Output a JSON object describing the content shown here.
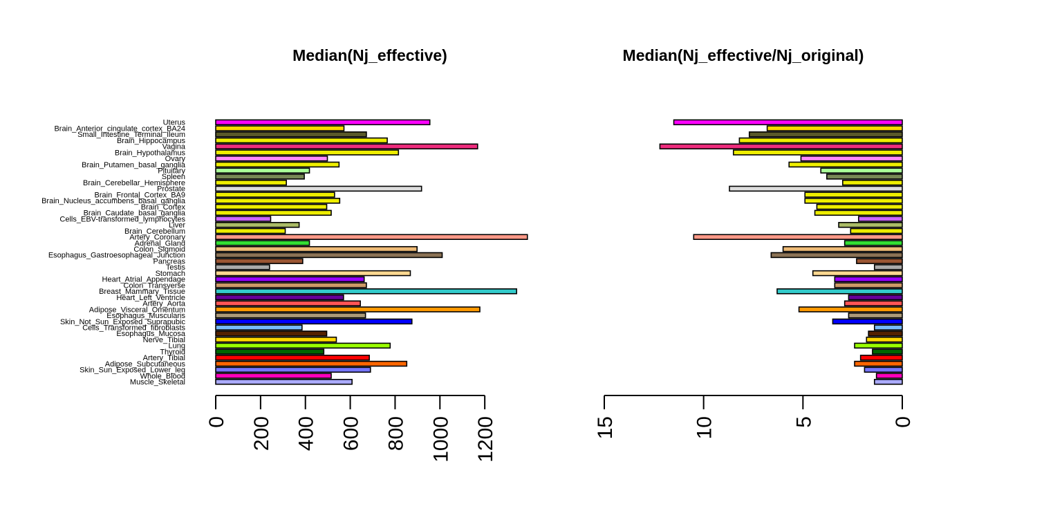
{
  "chart_data": [
    {
      "type": "bar",
      "orientation": "horizontal",
      "title": "Median(Nj_effective)",
      "xlabel": "",
      "ylabel": "",
      "xlim": [
        0,
        1400
      ],
      "xticks": [
        "0",
        "200",
        "400",
        "600",
        "800",
        "1000",
        "1200"
      ],
      "grid": false,
      "categories": [
        "Uterus",
        "Brain_Anterior_cingulate_cortex_BA24",
        "Small_Intestine_Terminal_Ileum",
        "Brain_Hippocampus",
        "Vagina",
        "Brain_Hypothalamus",
        "Ovary",
        "Brain_Putamen_basal_ganglia",
        "Pituitary",
        "Spleen",
        "Brain_Cerebellar_Hemisphere",
        "Prostate",
        "Brain_Frontal_Cortex_BA9",
        "Brain_Nucleus_accumbens_basal_ganglia",
        "Brain_Cortex",
        "Brain_Caudate_basal_ganglia",
        "Cells_EBV-transformed_lymphocytes",
        "Liver",
        "Brain_Cerebellum",
        "Artery_Coronary",
        "Adrenal_Gland",
        "Colon_Sigmoid",
        "Esophagus_Gastroesophageal_Junction",
        "Pancreas",
        "Testis",
        "Stomach",
        "Heart_Atrial_Appendage",
        "Colon_Transverse",
        "Breast_Mammary_Tissue",
        "Heart_Left_Ventricle",
        "Artery_Aorta",
        "Adipose_Visceral_Omentum",
        "Esophagus_Muscularis",
        "Skin_Not_Sun_Exposed_Suprapubic",
        "Cells_Transformed_fibroblasts",
        "Esophagus_Mucosa",
        "Nerve_Tibial",
        "Lung",
        "Thyroid",
        "Artery_Tibial",
        "Adipose_Subcutaneous",
        "Skin_Sun_Exposed_Lower_leg",
        "Whole_Blood",
        "Muscle_Skeletal"
      ],
      "colors": [
        "#FF00FF",
        "#FFD700",
        "#5A5A2A",
        "#EEEE00",
        "#EE2C7D",
        "#EEEE00",
        "#FF88FF",
        "#EEEE00",
        "#AAFF99",
        "#778855",
        "#EEEE00",
        "#DDDDDD",
        "#EEEE00",
        "#EEEE00",
        "#EEEE00",
        "#EEEE00",
        "#CC66FF",
        "#AABB66",
        "#EEEE00",
        "#FF9988",
        "#33DD33",
        "#EEBB77",
        "#8B7355",
        "#995533",
        "#AAAAAA",
        "#FFD991",
        "#9900FF",
        "#CC9966",
        "#33CCCC",
        "#660099",
        "#FF5555",
        "#FF9900",
        "#AA9977",
        "#0000FF",
        "#77BBFF",
        "#552200",
        "#FFD700",
        "#99FF00",
        "#006600",
        "#FF0000",
        "#FF6600",
        "#7777FF",
        "#FF00BB",
        "#AAAAFF"
      ],
      "values": [
        955,
        572,
        672,
        765,
        1168,
        815,
        498,
        550,
        418,
        395,
        315,
        918,
        530,
        553,
        495,
        515,
        245,
        372,
        310,
        1390,
        418,
        898,
        1010,
        388,
        240,
        868,
        662,
        672,
        1342,
        570,
        645,
        1178,
        668,
        875,
        385,
        495,
        538,
        778,
        482,
        685,
        852,
        690,
        515,
        608
      ]
    },
    {
      "type": "bar",
      "orientation": "horizontal",
      "title": "Median(Nj_effective/Nj_original)",
      "xlabel": "",
      "ylabel": "",
      "xlim": [
        15,
        0
      ],
      "xticks": [
        "15",
        "10",
        "5",
        "0"
      ],
      "grid": false,
      "categories": [
        "Uterus",
        "Brain_Anterior_cingulate_cortex_BA24",
        "Small_Intestine_Terminal_Ileum",
        "Brain_Hippocampus",
        "Vagina",
        "Brain_Hypothalamus",
        "Ovary",
        "Brain_Putamen_basal_ganglia",
        "Pituitary",
        "Spleen",
        "Brain_Cerebellar_Hemisphere",
        "Prostate",
        "Brain_Frontal_Cortex_BA9",
        "Brain_Nucleus_accumbens_basal_ganglia",
        "Brain_Cortex",
        "Brain_Caudate_basal_ganglia",
        "Cells_EBV-transformed_lymphocytes",
        "Liver",
        "Brain_Cerebellum",
        "Artery_Coronary",
        "Adrenal_Gland",
        "Colon_Sigmoid",
        "Esophagus_Gastroesophageal_Junction",
        "Pancreas",
        "Testis",
        "Stomach",
        "Heart_Atrial_Appendage",
        "Colon_Transverse",
        "Breast_Mammary_Tissue",
        "Heart_Left_Ventricle",
        "Artery_Aorta",
        "Adipose_Visceral_Omentum",
        "Esophagus_Muscularis",
        "Skin_Not_Sun_Exposed_Suprapubic",
        "Cells_Transformed_fibroblasts",
        "Esophagus_Mucosa",
        "Nerve_Tibial",
        "Lung",
        "Thyroid",
        "Artery_Tibial",
        "Adipose_Subcutaneous",
        "Skin_Sun_Exposed_Lower_leg",
        "Whole_Blood",
        "Muscle_Skeletal"
      ],
      "colors": [
        "#FF00FF",
        "#FFD700",
        "#5A5A2A",
        "#EEEE00",
        "#EE2C7D",
        "#EEEE00",
        "#FF88FF",
        "#EEEE00",
        "#AAFF99",
        "#778855",
        "#EEEE00",
        "#DDDDDD",
        "#EEEE00",
        "#EEEE00",
        "#EEEE00",
        "#EEEE00",
        "#CC66FF",
        "#AABB66",
        "#EEEE00",
        "#FF9988",
        "#33DD33",
        "#EEBB77",
        "#8B7355",
        "#995533",
        "#AAAAAA",
        "#FFD991",
        "#9900FF",
        "#CC9966",
        "#33CCCC",
        "#660099",
        "#FF5555",
        "#FF9900",
        "#AA9977",
        "#0000FF",
        "#77BBFF",
        "#552200",
        "#FFD700",
        "#99FF00",
        "#006600",
        "#FF0000",
        "#FF6600",
        "#7777FF",
        "#FF00BB",
        "#AAAAFF"
      ],
      "values": [
        11.5,
        6.8,
        7.7,
        8.2,
        12.2,
        8.5,
        5.1,
        5.7,
        4.1,
        3.8,
        3.0,
        8.7,
        4.9,
        4.9,
        4.3,
        4.4,
        2.2,
        3.2,
        2.6,
        10.5,
        2.9,
        6.0,
        6.6,
        2.3,
        1.4,
        4.5,
        3.4,
        3.4,
        6.3,
        2.7,
        2.9,
        5.2,
        2.7,
        3.5,
        1.4,
        1.7,
        1.8,
        2.4,
        1.5,
        2.1,
        2.4,
        1.9,
        1.3,
        1.4
      ]
    }
  ]
}
